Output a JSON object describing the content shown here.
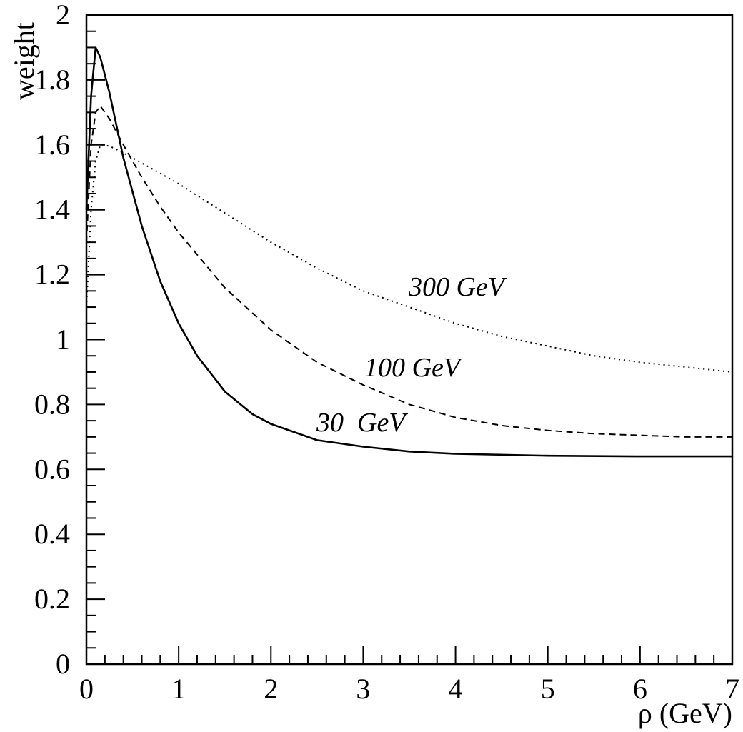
{
  "chart_data": {
    "type": "line",
    "xlabel": "ρ (GeV)",
    "ylabel": "weight",
    "xlim": [
      0,
      7
    ],
    "ylim": [
      0,
      2
    ],
    "x_ticks": [
      "0",
      "1",
      "2",
      "3",
      "4",
      "5",
      "6",
      "7"
    ],
    "y_ticks": [
      "0",
      "0.2",
      "0.4",
      "0.6",
      "0.8",
      "1",
      "1.2",
      "1.4",
      "1.6",
      "1.8",
      "2"
    ],
    "grid": false,
    "legend": "none",
    "annotations": [
      "300 GeV",
      "100 GeV",
      "30  GeV"
    ],
    "series": [
      {
        "name": "30  GeV",
        "style": "solid",
        "x": [
          0.0,
          0.05,
          0.1,
          0.15,
          0.25,
          0.4,
          0.6,
          0.8,
          1.0,
          1.2,
          1.5,
          1.8,
          2.0,
          2.5,
          3.0,
          3.5,
          4.0,
          5.0,
          6.0,
          7.0
        ],
        "y": [
          1.4,
          1.75,
          1.9,
          1.87,
          1.76,
          1.56,
          1.35,
          1.18,
          1.05,
          0.95,
          0.84,
          0.77,
          0.74,
          0.69,
          0.67,
          0.655,
          0.648,
          0.642,
          0.64,
          0.64
        ]
      },
      {
        "name": "100 GeV",
        "style": "dashed",
        "x": [
          0.0,
          0.05,
          0.1,
          0.15,
          0.25,
          0.4,
          0.6,
          0.8,
          1.0,
          1.5,
          2.0,
          2.5,
          3.0,
          3.5,
          4.0,
          4.5,
          5.0,
          5.5,
          6.0,
          6.5,
          7.0
        ],
        "y": [
          1.3,
          1.6,
          1.7,
          1.72,
          1.68,
          1.6,
          1.5,
          1.41,
          1.33,
          1.16,
          1.03,
          0.93,
          0.86,
          0.8,
          0.76,
          0.735,
          0.72,
          0.71,
          0.705,
          0.7,
          0.7
        ]
      },
      {
        "name": "300 GeV",
        "style": "dotted",
        "x": [
          0.0,
          0.05,
          0.1,
          0.15,
          0.2,
          0.3,
          0.5,
          1.0,
          1.5,
          2.0,
          2.5,
          3.0,
          3.5,
          4.0,
          4.5,
          5.0,
          5.5,
          6.0,
          6.5,
          7.0
        ],
        "y": [
          1.1,
          1.4,
          1.55,
          1.6,
          1.6,
          1.59,
          1.56,
          1.48,
          1.39,
          1.3,
          1.22,
          1.15,
          1.1,
          1.05,
          1.01,
          0.98,
          0.95,
          0.93,
          0.915,
          0.9
        ]
      }
    ]
  }
}
